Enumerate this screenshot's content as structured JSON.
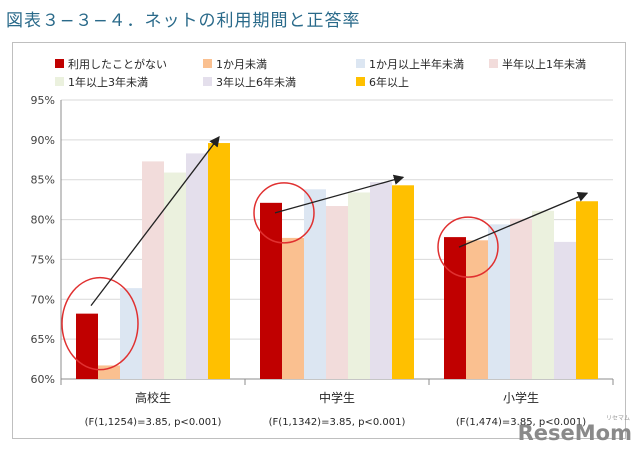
{
  "title": "図表３−３−４．ネットの利用期間と正答率",
  "watermark": "ReseMom",
  "watermark_sub": "リセマム",
  "chart_data": {
    "type": "bar",
    "categories": [
      "高校生",
      "中学生",
      "小学生"
    ],
    "category_notes": [
      "(F(1,1254)=3.85, p<0.001)",
      "(F(1,1342)=3.85, p<0.001)",
      "(F(1,474)=3.85, p<0.001)"
    ],
    "ylim": [
      60,
      95
    ],
    "yticks": [
      "60%",
      "65%",
      "70%",
      "75%",
      "80%",
      "85%",
      "90%",
      "95%"
    ],
    "ytick_values": [
      60,
      65,
      70,
      75,
      80,
      85,
      90,
      95
    ],
    "gridlines": true,
    "legend_position": "top",
    "series": [
      {
        "name": "利用したことがない",
        "color": "#c00000",
        "values": [
          68.2,
          82.1,
          77.8
        ]
      },
      {
        "name": "1か月未満",
        "color": "#fac090",
        "values": [
          61.7,
          77.7,
          77.4
        ]
      },
      {
        "name": "1か月以上半年未満",
        "color": "#dce6f2",
        "values": [
          71.4,
          83.8,
          79.4
        ]
      },
      {
        "name": "半年以上1年未満",
        "color": "#f2dcdb",
        "values": [
          87.3,
          81.7,
          80.1
        ]
      },
      {
        "name": "1年以上3年未満",
        "color": "#ebf1de",
        "values": [
          85.9,
          83.4,
          81.1
        ]
      },
      {
        "name": "3年以上6年未満",
        "color": "#e4dfec",
        "values": [
          88.3,
          84.7,
          77.2
        ]
      },
      {
        "name": "6年以上",
        "color": "#ffc000",
        "values": [
          89.6,
          84.3,
          82.3
        ]
      }
    ]
  }
}
